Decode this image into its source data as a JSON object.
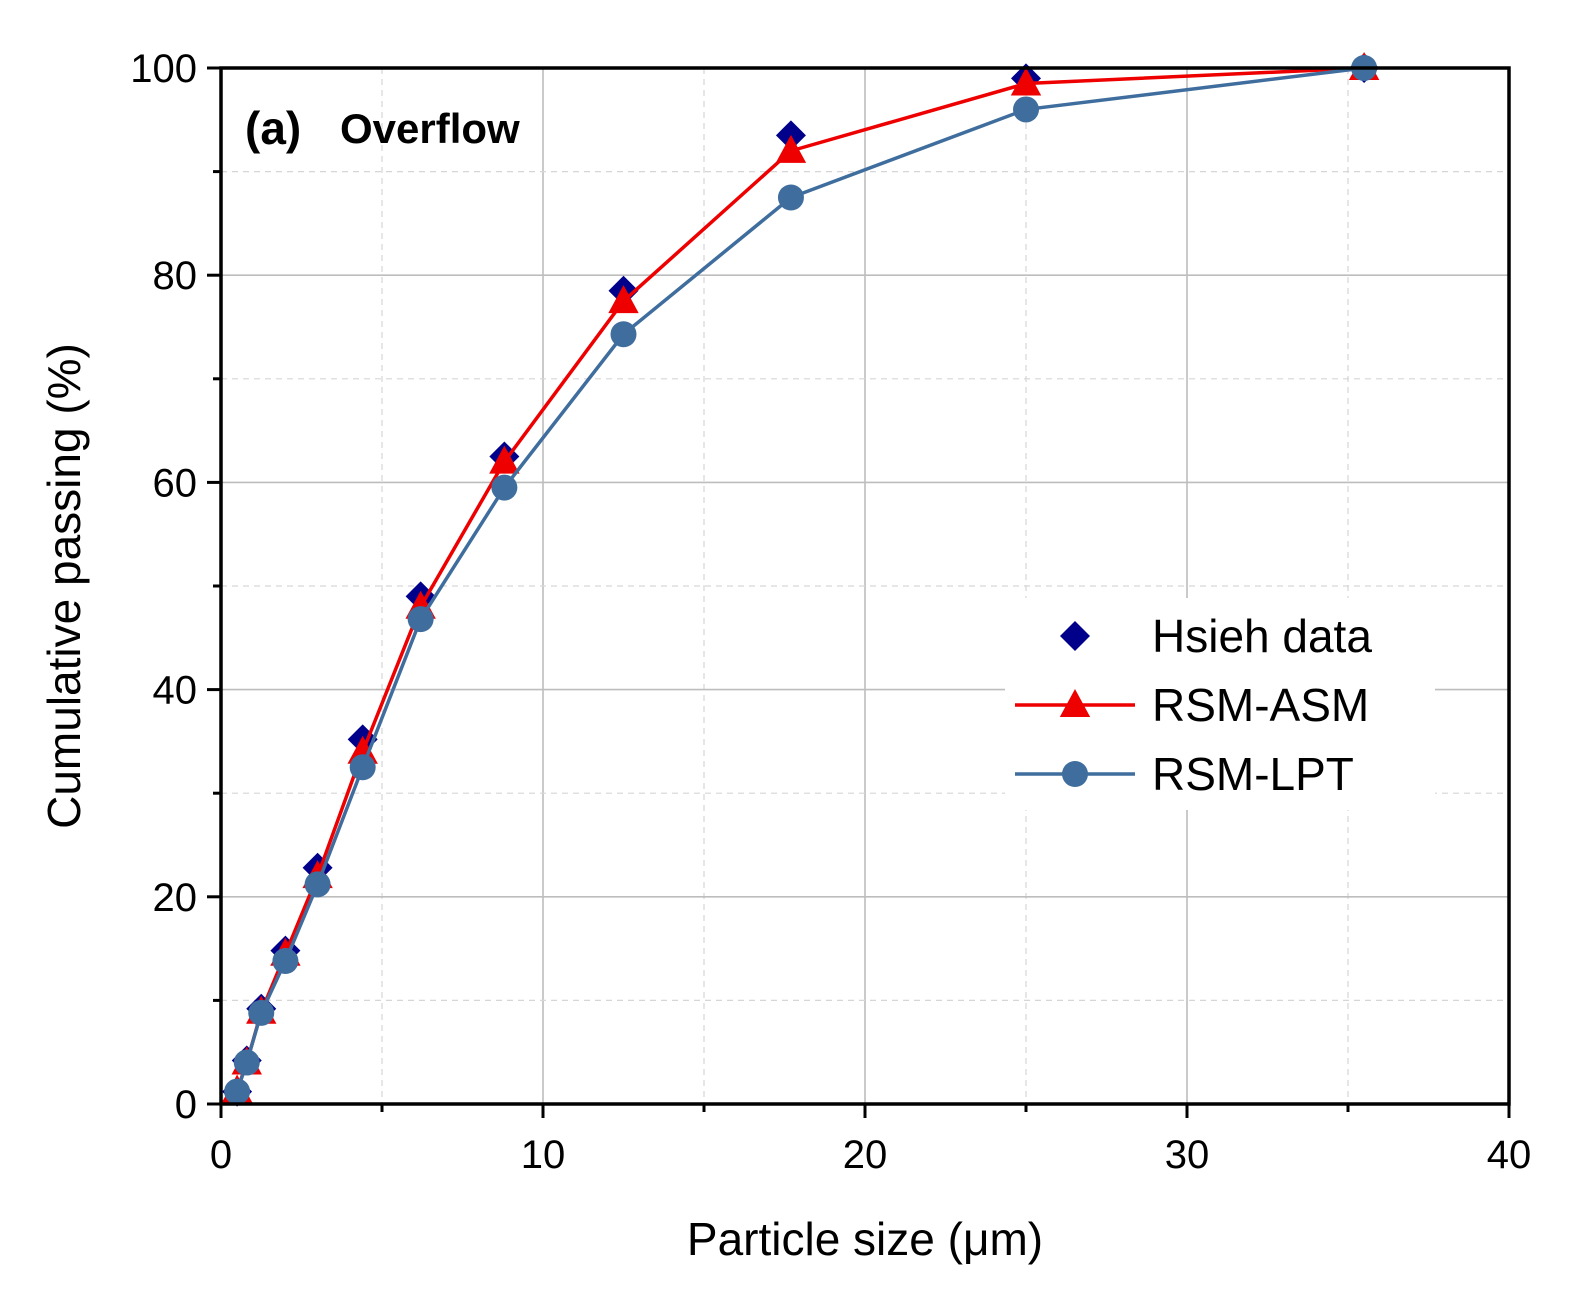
{
  "chart_data": {
    "type": "line",
    "panel_label": "(a)",
    "title": "Overflow",
    "xlabel": "Particle size (μm)",
    "ylabel": "Cumulative passing (%)",
    "xlim": [
      0,
      40
    ],
    "ylim": [
      0,
      100
    ],
    "xticks": [
      0,
      10,
      20,
      30,
      40
    ],
    "yticks": [
      0,
      20,
      40,
      60,
      80,
      100
    ],
    "xtick_labels": [
      "0",
      "10",
      "20",
      "30",
      "40"
    ],
    "ytick_labels": [
      "0",
      "20",
      "40",
      "60",
      "80",
      "100"
    ],
    "grid": true,
    "legend_position": "center-right",
    "series": [
      {
        "name": "Hsieh data",
        "marker": "diamond",
        "line": false,
        "color": "#00008b",
        "x": [
          0.5,
          0.8,
          1.25,
          2.0,
          3.0,
          4.4,
          6.2,
          8.8,
          12.5,
          17.7,
          25.0,
          35.5
        ],
        "y": [
          1.2,
          4.2,
          9.2,
          14.8,
          22.8,
          35.2,
          49.0,
          62.5,
          78.5,
          93.5,
          99.0,
          100.0
        ]
      },
      {
        "name": "RSM-ASM",
        "marker": "triangle",
        "line": true,
        "color": "#ee0000",
        "x": [
          0.0,
          0.5,
          0.8,
          1.25,
          2.0,
          3.0,
          4.4,
          6.2,
          8.8,
          12.5,
          17.7,
          25.0,
          35.5
        ],
        "y": [
          0.0,
          1.3,
          4.0,
          8.9,
          14.5,
          22.0,
          34.0,
          48.0,
          62.0,
          77.5,
          92.0,
          98.5,
          100.0
        ]
      },
      {
        "name": "RSM-LPT",
        "marker": "circle",
        "line": true,
        "color": "#3f6e9e",
        "x": [
          0.5,
          0.8,
          1.25,
          2.0,
          3.0,
          4.4,
          6.2,
          8.8,
          12.5,
          17.7,
          25.0,
          35.5
        ],
        "y": [
          1.2,
          4.0,
          8.8,
          13.8,
          21.2,
          32.5,
          46.8,
          59.5,
          74.3,
          87.5,
          96.0,
          100.0
        ]
      }
    ]
  }
}
